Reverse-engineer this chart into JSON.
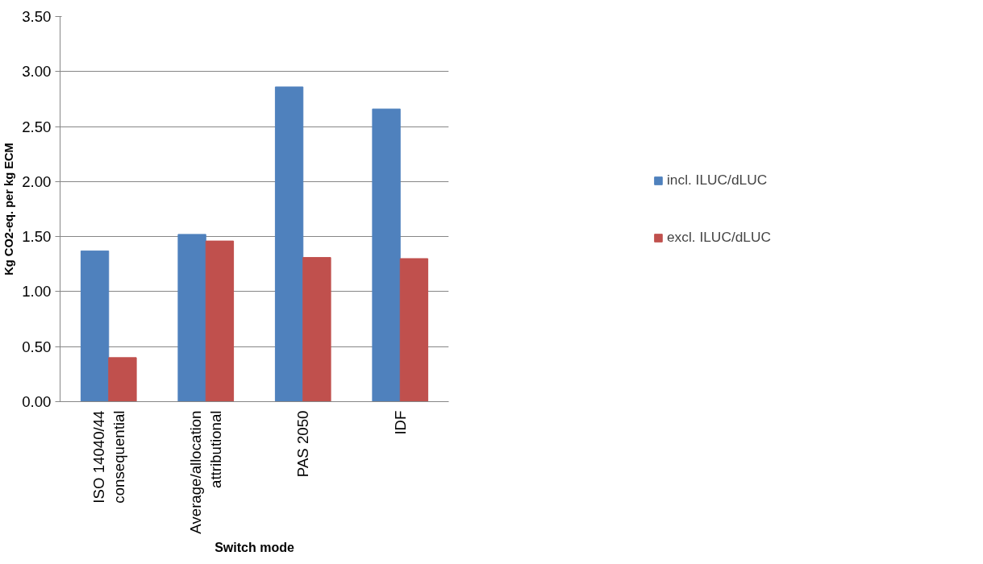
{
  "chart_data": {
    "type": "bar",
    "categories": [
      "ISO 14040/44\nconsequential",
      "Average/allocation\nattributional",
      "PAS 2050",
      "IDF"
    ],
    "series": [
      {
        "name": "incl. ILUC/dLUC",
        "color": "#4f81bd",
        "values": [
          1.37,
          1.52,
          2.86,
          2.66
        ]
      },
      {
        "name": "excl. ILUC/dLUC",
        "color": "#c0504d",
        "values": [
          0.4,
          1.46,
          1.31,
          1.3
        ]
      }
    ],
    "xlabel": "Switch mode",
    "ylabel": "Kg CO2-eq. per kg ECM",
    "ylim": [
      0,
      3.5
    ],
    "yticks": [
      {
        "value": 0,
        "label": "0.00"
      },
      {
        "value": 0.5,
        "label": "0.50"
      },
      {
        "value": 1,
        "label": "1.00"
      },
      {
        "value": 1.5,
        "label": "1.50"
      },
      {
        "value": 2,
        "label": "2.00"
      },
      {
        "value": 2.5,
        "label": "2.50"
      },
      {
        "value": 3,
        "label": "3.00"
      },
      {
        "value": 3.5,
        "label": "3.50"
      }
    ],
    "grid": "y",
    "legend": "right"
  }
}
